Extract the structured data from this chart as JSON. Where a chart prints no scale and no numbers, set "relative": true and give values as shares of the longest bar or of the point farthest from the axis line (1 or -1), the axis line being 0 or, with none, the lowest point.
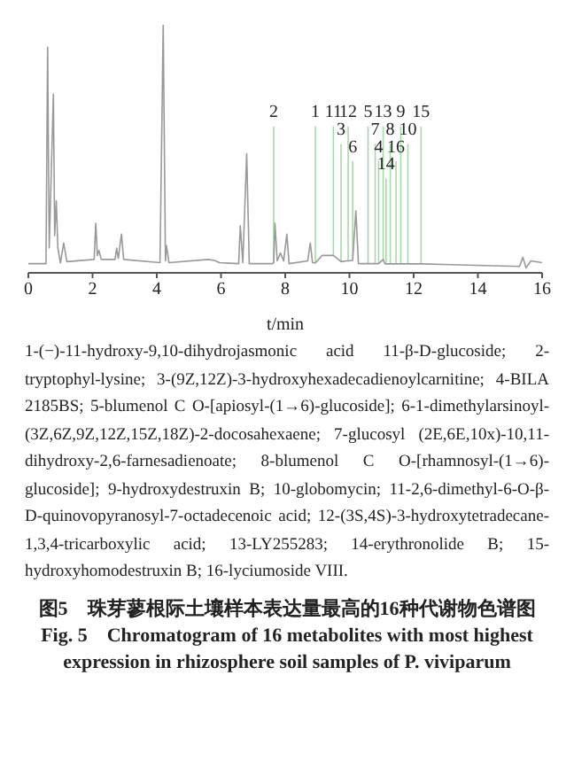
{
  "chart_data": {
    "type": "line",
    "relative": true,
    "title": "图5　珠芽蓼根际土壤样本表达量最高的16种代谢物色谱图",
    "subtitle": "Fig. 5　Chromatogram of 16 metabolites with most highest expression in rhizosphere soil samples of P. viviparum",
    "xlabel": "t/min",
    "xlim": [
      0,
      16
    ],
    "xticks": [
      0,
      2,
      4,
      6,
      8,
      10,
      12,
      14,
      16
    ],
    "grid": false,
    "legend": false,
    "marker": "none",
    "line_style": "solid",
    "x": [
      0,
      0.55,
      0.6,
      0.65,
      0.72,
      0.78,
      0.82,
      0.87,
      0.92,
      1.0,
      1.1,
      1.2,
      2.05,
      2.1,
      2.15,
      2.2,
      2.27,
      2.7,
      2.75,
      2.8,
      2.9,
      2.97,
      4.1,
      4.2,
      4.27,
      4.3,
      4.38,
      5.6,
      5.8,
      5.95,
      6.55,
      6.6,
      6.68,
      6.8,
      6.88,
      7.6,
      7.64,
      7.68,
      7.75,
      7.85,
      7.95,
      8.05,
      8.12,
      8.7,
      8.78,
      8.85,
      8.94,
      9.15,
      9.5,
      9.74,
      9.9,
      9.96,
      10.1,
      10.2,
      10.28,
      10.58,
      10.8,
      10.91,
      11.05,
      11.1,
      11.14,
      11.27,
      11.45,
      11.6,
      11.82,
      12.23,
      15.3,
      15.4,
      15.5,
      15.65,
      16
    ],
    "series": [
      {
        "color": "#999999",
        "values": [
          0.037,
          0.037,
          0.91,
          0.1,
          0.43,
          0.72,
          0.15,
          0.29,
          0.1,
          0.04,
          0.12,
          0.045,
          0.054,
          0.2,
          0.07,
          0.09,
          0.054,
          0.054,
          0.1,
          0.058,
          0.156,
          0.054,
          0.041,
          1,
          0.048,
          0.11,
          0.041,
          0.054,
          0.05,
          0.041,
          0.037,
          0.19,
          0.041,
          0.48,
          0.037,
          0.037,
          0.04,
          0.2,
          0.048,
          0.08,
          0.048,
          0.156,
          0.037,
          0.048,
          0.12,
          0.041,
          0.04,
          0.07,
          0.07,
          0.045,
          0.048,
          0.048,
          0.05,
          0.25,
          0.037,
          0.037,
          0.037,
          0.037,
          0.054,
          0.037,
          0.036,
          0.036,
          0.036,
          0.036,
          0.036,
          0.036,
          0.026,
          0.063,
          0.02,
          0.048,
          0.041
        ]
      }
    ],
    "annotations": [
      {
        "text": "1",
        "x": 8.94,
        "y": 0.04
      },
      {
        "text": "2",
        "x": 7.64,
        "y": 0.04
      },
      {
        "text": "3",
        "x": 9.74,
        "y": 0.045
      },
      {
        "text": "4",
        "x": 10.91,
        "y": 0.037
      },
      {
        "text": "5",
        "x": 10.58,
        "y": 0.037
      },
      {
        "text": "6",
        "x": 10.1,
        "y": 0.05
      },
      {
        "text": "7",
        "x": 10.8,
        "y": 0.037
      },
      {
        "text": "8",
        "x": 11.27,
        "y": 0.036
      },
      {
        "text": "9",
        "x": 11.6,
        "y": 0.036
      },
      {
        "text": "10",
        "x": 11.82,
        "y": 0.036
      },
      {
        "text": "11",
        "x": 9.5,
        "y": 0.07
      },
      {
        "text": "12",
        "x": 9.96,
        "y": 0.048
      },
      {
        "text": "13",
        "x": 11.05,
        "y": 0.054
      },
      {
        "text": "14",
        "x": 11.14,
        "y": 0.036
      },
      {
        "text": "15",
        "x": 12.23,
        "y": 0.036
      },
      {
        "text": "16",
        "x": 11.45,
        "y": 0.036
      },
      "1-(−)-11-hydroxy-9,10-dihydrojasmonic acid 11-β-D-glucoside; 2-tryptophyl-lysine; 3-(9Z,12Z)-3-hydroxyhexadecadienoylcarnitine; 4-BILA 2185BS; 5-blumenol C O-[apiosyl-(1→6)-glucoside]; 6-1-dimethylarsinoyl-(3Z,6Z,9Z,12Z,15Z,18Z)-2-docosahexaene; 7-glucosyl (2E,6E,10x)-10,11-dihydroxy-2,6-farnesadienoate; 8-blumenol C O-[rhamnosyl-(1→6)-glucoside]; 9-hydroxydestruxin B; 10-globomycin; 11-2,6-dimethyl-6-O-β-D-quinovopyranosyl-7-octadecenoic acid; 12-(3S,4S)-3-hydroxytetradecane-1,3,4-tricarboxylic acid; 13-LY255283; 14-erythronolide B; 15-hydroxyhomodestruxin B; 16-lyciumoside VIII."
    ]
  }
}
